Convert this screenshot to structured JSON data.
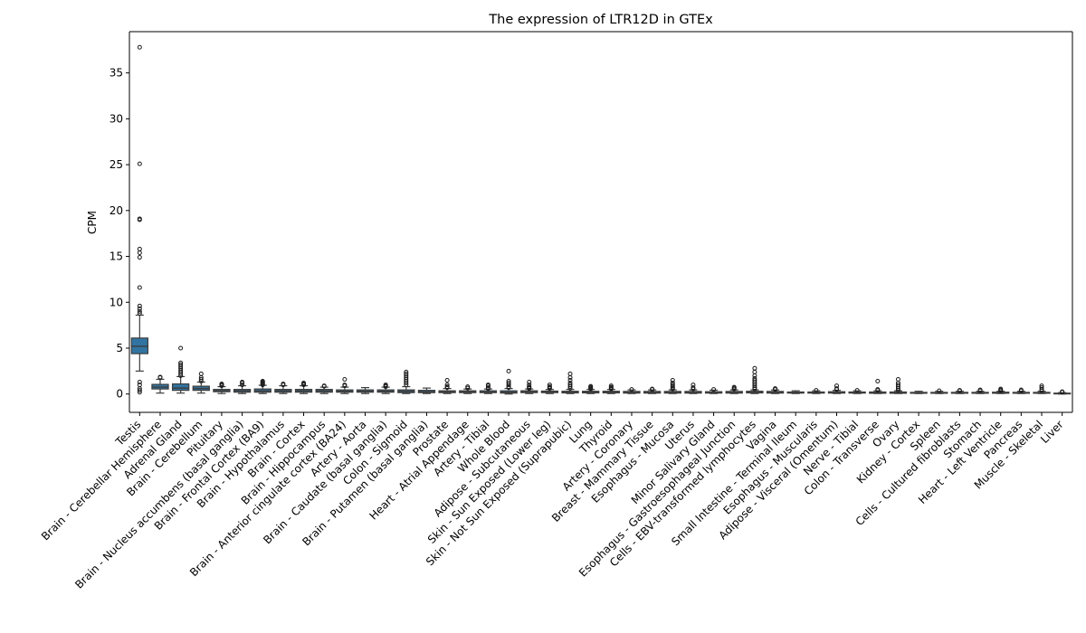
{
  "chart_data": {
    "type": "box",
    "title": "The expression of LTR12D in GTEx",
    "xlabel": "",
    "ylabel": "CPM",
    "ylim": [
      -2,
      39.5
    ],
    "yticks": [
      0,
      5,
      10,
      15,
      20,
      25,
      30,
      35
    ],
    "grid": false,
    "legend": "none",
    "box_color": "#3274a1",
    "categories": [
      "Testis",
      "Brain - Cerebellar Hemisphere",
      "Adrenal Gland",
      "Brain - Cerebellum",
      "Pituitary",
      "Brain - Nucleus accumbens (basal ganglia)",
      "Brain - Frontal Cortex (BA9)",
      "Brain - Hypothalamus",
      "Brain - Cortex",
      "Brain - Hippocampus",
      "Brain - Anterior cingulate cortex (BA24)",
      "Artery - Aorta",
      "Brain - Caudate (basal ganglia)",
      "Colon - Sigmoid",
      "Brain - Putamen (basal ganglia)",
      "Prostate",
      "Heart - Atrial Appendage",
      "Artery - Tibial",
      "Whole Blood",
      "Adipose - Subcutaneous",
      "Skin - Sun Exposed (Lower leg)",
      "Skin - Not Sun Exposed (Suprapubic)",
      "Lung",
      "Thyroid",
      "Artery - Coronary",
      "Breast - Mammary Tissue",
      "Esophagus - Mucosa",
      "Uterus",
      "Minor Salivary Gland",
      "Esophagus - Gastroesophageal Junction",
      "Cells - EBV-transformed lymphocytes",
      "Vagina",
      "Small Intestine - Terminal Ileum",
      "Esophagus - Muscularis",
      "Adipose - Visceral (Omentum)",
      "Nerve - Tibial",
      "Colon - Transverse",
      "Ovary",
      "Kidney - Cortex",
      "Spleen",
      "Cells - Cultured fibroblasts",
      "Stomach",
      "Heart - Left Ventricle",
      "Pancreas",
      "Muscle - Skeletal",
      "Liver"
    ],
    "boxes": [
      {
        "whislo": 2.5,
        "q1": 4.4,
        "med": 5.2,
        "q3": 6.1,
        "whishi": 8.6,
        "fliers": [
          0.2,
          0.4,
          0.6,
          1.0,
          1.3,
          8.8,
          9.0,
          9.3,
          9.6,
          11.6,
          14.9,
          15.4,
          15.8,
          19.0,
          19.1,
          25.1,
          37.8
        ]
      },
      {
        "whislo": 0.1,
        "q1": 0.55,
        "med": 0.75,
        "q3": 1.05,
        "whishi": 1.6,
        "fliers": [
          1.8,
          1.85
        ]
      },
      {
        "whislo": 0.1,
        "q1": 0.4,
        "med": 0.65,
        "q3": 1.1,
        "whishi": 1.9,
        "fliers": [
          2.0,
          2.2,
          2.4,
          2.6,
          2.8,
          3.0,
          3.2,
          3.4,
          5.0
        ]
      },
      {
        "whislo": 0.1,
        "q1": 0.4,
        "med": 0.6,
        "q3": 0.85,
        "whishi": 1.3,
        "fliers": [
          1.4,
          1.6,
          1.8,
          2.2
        ]
      },
      {
        "whislo": 0.05,
        "q1": 0.25,
        "med": 0.35,
        "q3": 0.5,
        "whishi": 0.8,
        "fliers": [
          0.9,
          1.0,
          1.1
        ]
      },
      {
        "whislo": 0.05,
        "q1": 0.2,
        "med": 0.35,
        "q3": 0.5,
        "whishi": 0.9,
        "fliers": [
          1.0,
          1.2,
          1.3
        ]
      },
      {
        "whislo": 0.05,
        "q1": 0.2,
        "med": 0.35,
        "q3": 0.55,
        "whishi": 0.95,
        "fliers": [
          1.0,
          1.1,
          1.2,
          1.3,
          1.4
        ]
      },
      {
        "whislo": 0.05,
        "q1": 0.2,
        "med": 0.35,
        "q3": 0.5,
        "whishi": 0.9,
        "fliers": [
          1.0,
          1.1
        ]
      },
      {
        "whislo": 0.05,
        "q1": 0.2,
        "med": 0.35,
        "q3": 0.5,
        "whishi": 0.9,
        "fliers": [
          1.0,
          1.1,
          1.2
        ]
      },
      {
        "whislo": 0.05,
        "q1": 0.2,
        "med": 0.35,
        "q3": 0.5,
        "whishi": 0.75,
        "fliers": [
          0.85,
          0.9
        ]
      },
      {
        "whislo": 0.05,
        "q1": 0.2,
        "med": 0.3,
        "q3": 0.45,
        "whishi": 0.75,
        "fliers": [
          0.9,
          1.0,
          1.6
        ]
      },
      {
        "whislo": 0.05,
        "q1": 0.2,
        "med": 0.3,
        "q3": 0.45,
        "whishi": 0.7,
        "fliers": []
      },
      {
        "whislo": 0.05,
        "q1": 0.2,
        "med": 0.3,
        "q3": 0.45,
        "whishi": 0.75,
        "fliers": [
          0.8,
          0.9,
          1.0
        ]
      },
      {
        "whislo": 0.05,
        "q1": 0.15,
        "med": 0.3,
        "q3": 0.45,
        "whishi": 0.8,
        "fliers": [
          1.0,
          1.2,
          1.4,
          1.6,
          1.8,
          2.0,
          2.2,
          2.4
        ]
      },
      {
        "whislo": 0.05,
        "q1": 0.15,
        "med": 0.25,
        "q3": 0.4,
        "whishi": 0.65,
        "fliers": []
      },
      {
        "whislo": 0.05,
        "q1": 0.15,
        "med": 0.25,
        "q3": 0.35,
        "whishi": 0.6,
        "fliers": [
          0.7,
          0.8,
          1.0,
          1.5
        ]
      },
      {
        "whislo": 0.05,
        "q1": 0.15,
        "med": 0.25,
        "q3": 0.35,
        "whishi": 0.55,
        "fliers": [
          0.65,
          0.8
        ]
      },
      {
        "whislo": 0.05,
        "q1": 0.15,
        "med": 0.22,
        "q3": 0.35,
        "whishi": 0.55,
        "fliers": [
          0.6,
          0.7,
          0.9,
          1.0
        ]
      },
      {
        "whislo": 0.0,
        "q1": 0.1,
        "med": 0.2,
        "q3": 0.35,
        "whishi": 0.6,
        "fliers": [
          0.7,
          0.8,
          1.0,
          1.2,
          1.4,
          2.5
        ]
      },
      {
        "whislo": 0.05,
        "q1": 0.15,
        "med": 0.25,
        "q3": 0.35,
        "whishi": 0.55,
        "fliers": [
          0.6,
          0.7,
          0.8,
          1.0,
          1.3
        ]
      },
      {
        "whislo": 0.05,
        "q1": 0.15,
        "med": 0.22,
        "q3": 0.32,
        "whishi": 0.5,
        "fliers": [
          0.6,
          0.7,
          0.8,
          1.0
        ]
      },
      {
        "whislo": 0.05,
        "q1": 0.12,
        "med": 0.2,
        "q3": 0.3,
        "whishi": 0.5,
        "fliers": [
          0.6,
          0.8,
          1.0,
          1.2,
          1.5,
          1.8,
          2.2
        ]
      },
      {
        "whislo": 0.05,
        "q1": 0.12,
        "med": 0.2,
        "q3": 0.3,
        "whishi": 0.5,
        "fliers": [
          0.55,
          0.65,
          0.75,
          0.85
        ]
      },
      {
        "whislo": 0.05,
        "q1": 0.12,
        "med": 0.2,
        "q3": 0.3,
        "whishi": 0.5,
        "fliers": [
          0.55,
          0.65,
          0.75,
          0.9
        ]
      },
      {
        "whislo": 0.05,
        "q1": 0.1,
        "med": 0.18,
        "q3": 0.28,
        "whishi": 0.45,
        "fliers": [
          0.5
        ]
      },
      {
        "whislo": 0.05,
        "q1": 0.1,
        "med": 0.18,
        "q3": 0.28,
        "whishi": 0.45,
        "fliers": [
          0.5,
          0.55
        ]
      },
      {
        "whislo": 0.05,
        "q1": 0.1,
        "med": 0.18,
        "q3": 0.28,
        "whishi": 0.45,
        "fliers": [
          0.55,
          0.7,
          0.85,
          1.0,
          1.2,
          1.5
        ]
      },
      {
        "whislo": 0.05,
        "q1": 0.1,
        "med": 0.18,
        "q3": 0.28,
        "whishi": 0.45,
        "fliers": [
          0.55,
          0.7,
          1.0
        ]
      },
      {
        "whislo": 0.05,
        "q1": 0.1,
        "med": 0.18,
        "q3": 0.25,
        "whishi": 0.42,
        "fliers": [
          0.5
        ]
      },
      {
        "whislo": 0.05,
        "q1": 0.1,
        "med": 0.18,
        "q3": 0.28,
        "whishi": 0.45,
        "fliers": [
          0.55,
          0.65,
          0.75
        ]
      },
      {
        "whislo": 0.05,
        "q1": 0.12,
        "med": 0.2,
        "q3": 0.3,
        "whishi": 0.45,
        "fliers": [
          0.55,
          0.7,
          0.9,
          1.1,
          1.3,
          1.5,
          1.7,
          2.0,
          2.4,
          2.8
        ]
      },
      {
        "whislo": 0.05,
        "q1": 0.1,
        "med": 0.18,
        "q3": 0.28,
        "whishi": 0.45,
        "fliers": [
          0.5,
          0.6
        ]
      },
      {
        "whislo": 0.05,
        "q1": 0.1,
        "med": 0.15,
        "q3": 0.22,
        "whishi": 0.35,
        "fliers": []
      },
      {
        "whislo": 0.05,
        "q1": 0.1,
        "med": 0.15,
        "q3": 0.22,
        "whishi": 0.35,
        "fliers": [
          0.4
        ]
      },
      {
        "whislo": 0.05,
        "q1": 0.1,
        "med": 0.15,
        "q3": 0.25,
        "whishi": 0.4,
        "fliers": [
          0.5,
          0.6,
          0.9
        ]
      },
      {
        "whislo": 0.05,
        "q1": 0.1,
        "med": 0.15,
        "q3": 0.22,
        "whishi": 0.35,
        "fliers": [
          0.4
        ]
      },
      {
        "whislo": 0.05,
        "q1": 0.08,
        "med": 0.14,
        "q3": 0.22,
        "whishi": 0.35,
        "fliers": [
          0.4,
          0.5,
          1.4
        ]
      },
      {
        "whislo": 0.05,
        "q1": 0.08,
        "med": 0.14,
        "q3": 0.22,
        "whishi": 0.35,
        "fliers": [
          0.4,
          0.6,
          0.8,
          1.0,
          1.2,
          1.6
        ]
      },
      {
        "whislo": 0.05,
        "q1": 0.08,
        "med": 0.12,
        "q3": 0.18,
        "whishi": 0.3,
        "fliers": []
      },
      {
        "whislo": 0.05,
        "q1": 0.08,
        "med": 0.12,
        "q3": 0.18,
        "whishi": 0.3,
        "fliers": [
          0.35
        ]
      },
      {
        "whislo": 0.05,
        "q1": 0.08,
        "med": 0.12,
        "q3": 0.18,
        "whishi": 0.3,
        "fliers": [
          0.35,
          0.4
        ]
      },
      {
        "whislo": 0.05,
        "q1": 0.08,
        "med": 0.12,
        "q3": 0.18,
        "whishi": 0.3,
        "fliers": [
          0.35,
          0.45
        ]
      },
      {
        "whislo": 0.05,
        "q1": 0.08,
        "med": 0.12,
        "q3": 0.2,
        "whishi": 0.3,
        "fliers": [
          0.35,
          0.45,
          0.55
        ]
      },
      {
        "whislo": 0.05,
        "q1": 0.08,
        "med": 0.12,
        "q3": 0.18,
        "whishi": 0.3,
        "fliers": [
          0.35,
          0.45
        ]
      },
      {
        "whislo": 0.05,
        "q1": 0.08,
        "med": 0.12,
        "q3": 0.18,
        "whishi": 0.3,
        "fliers": [
          0.35,
          0.5,
          0.7,
          0.9
        ]
      },
      {
        "whislo": 0.0,
        "q1": 0.04,
        "med": 0.06,
        "q3": 0.09,
        "whishi": 0.15,
        "fliers": [
          0.2,
          0.25
        ]
      }
    ]
  }
}
